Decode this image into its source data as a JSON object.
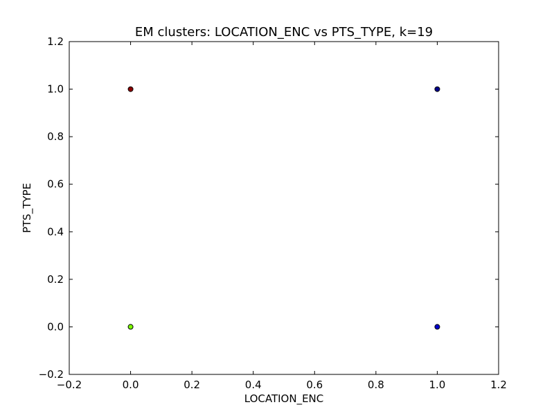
{
  "chart_data": {
    "type": "scatter",
    "title": "EM clusters: LOCATION_ENC vs PTS_TYPE, k=19",
    "xlabel": "LOCATION_ENC",
    "ylabel": "PTS_TYPE",
    "xlim": [
      -0.2,
      1.2
    ],
    "ylim": [
      -0.2,
      1.2
    ],
    "xticks": [
      "−0.2",
      "0.0",
      "0.2",
      "0.4",
      "0.6",
      "0.8",
      "1.0",
      "1.2"
    ],
    "yticks": [
      "−0.2",
      "0.0",
      "0.2",
      "0.4",
      "0.6",
      "0.8",
      "1.0",
      "1.2"
    ],
    "xtick_values": [
      -0.2,
      0.0,
      0.2,
      0.4,
      0.6,
      0.8,
      1.0,
      1.2
    ],
    "ytick_values": [
      -0.2,
      0.0,
      0.2,
      0.4,
      0.6,
      0.8,
      1.0,
      1.2
    ],
    "grid": false,
    "points": [
      {
        "x": 0.0,
        "y": 1.0,
        "color": "#8b0000"
      },
      {
        "x": 0.0,
        "y": 0.0,
        "color": "#7cfc00"
      },
      {
        "x": 1.0,
        "y": 1.0,
        "color": "#00008b"
      },
      {
        "x": 1.0,
        "y": 0.0,
        "color": "#0000cd"
      }
    ]
  }
}
